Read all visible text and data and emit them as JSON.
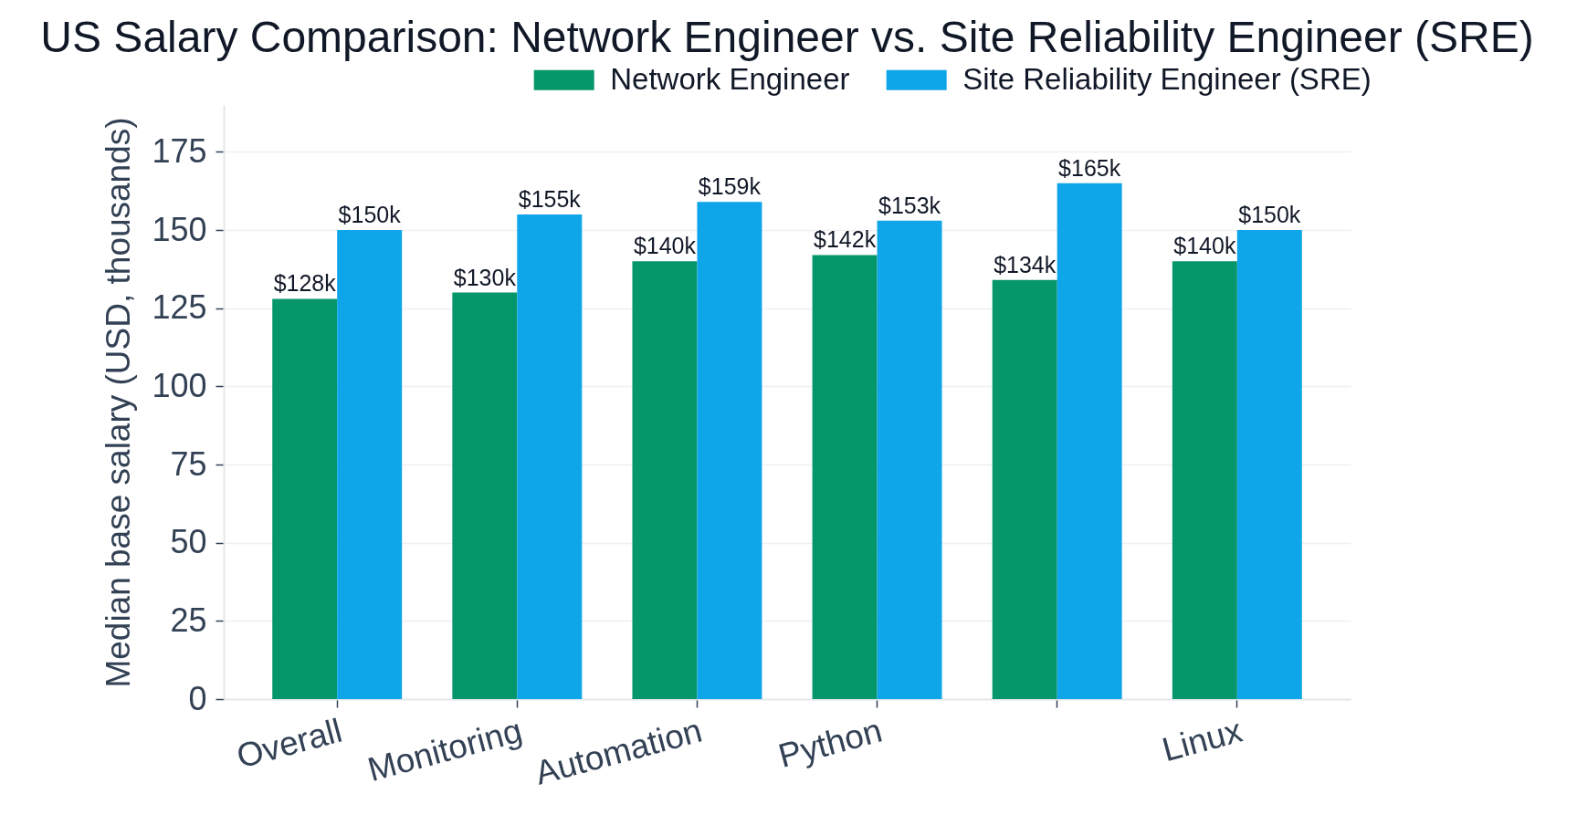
{
  "chart_data": {
    "type": "bar",
    "title": "US Salary Comparison: Network Engineer vs. Site Reliability Engineer (SRE)",
    "ylabel": "Median base salary (USD, thousands)",
    "categories": [
      "Overall",
      "Monitoring",
      "Automation",
      "Python",
      null,
      "Linux"
    ],
    "series": [
      {
        "name": "Network Engineer",
        "color": "#059669",
        "values": [
          128,
          130,
          140,
          142,
          134,
          140
        ],
        "value_labels": [
          "$128k",
          "$130k",
          "$140k",
          "$142k",
          "$134k",
          "$140k"
        ]
      },
      {
        "name": "Site Reliability Engineer (SRE)",
        "color": "#0ea5e9",
        "values": [
          150,
          155,
          159,
          153,
          165,
          150
        ],
        "value_labels": [
          "$150k",
          "$155k",
          "$159k",
          "$153k",
          "$165k",
          "$150k"
        ]
      }
    ],
    "ylim": [
      0,
      190
    ],
    "yticks": [
      0,
      25,
      50,
      75,
      100,
      125,
      150,
      175
    ],
    "grid": "y",
    "legend": "top right"
  }
}
